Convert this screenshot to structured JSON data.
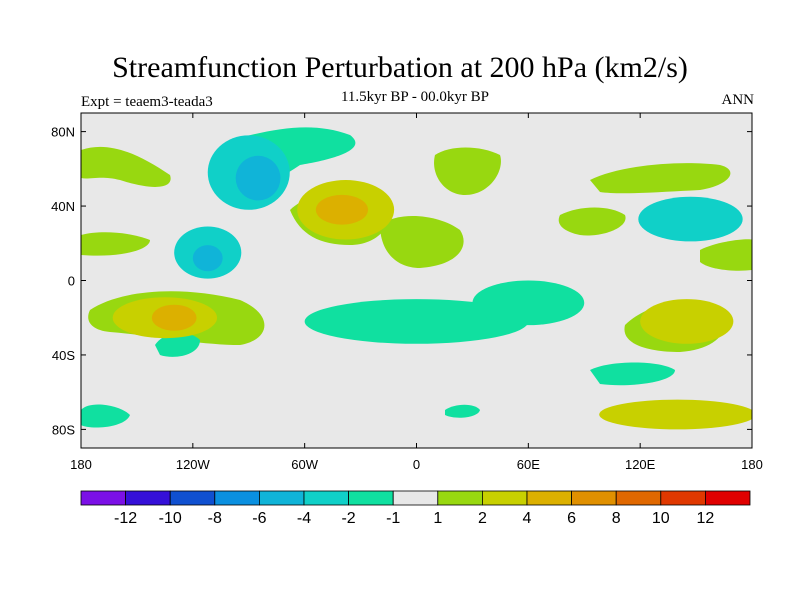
{
  "chart_data": {
    "type": "contour-map",
    "title": "Streamfunction Perturbation at 200 hPa (km2/s)",
    "subtitle": "11.5kyr BP - 00.0kyr BP",
    "left_label": "Expt = teaem3-teada3",
    "right_label": "ANN",
    "x_axis": {
      "range": [
        -180,
        180
      ],
      "ticks": [
        {
          "value": -180,
          "label": "180"
        },
        {
          "value": -120,
          "label": "120W"
        },
        {
          "value": -60,
          "label": "60W"
        },
        {
          "value": 0,
          "label": "0"
        },
        {
          "value": 60,
          "label": "60E"
        },
        {
          "value": 120,
          "label": "120E"
        },
        {
          "value": 180,
          "label": "180"
        }
      ]
    },
    "y_axis": {
      "range": [
        -90,
        90
      ],
      "ticks": [
        {
          "value": 80,
          "label": "80N"
        },
        {
          "value": 40,
          "label": "40N"
        },
        {
          "value": 0,
          "label": "0"
        },
        {
          "value": -40,
          "label": "40S"
        },
        {
          "value": -80,
          "label": "80S"
        }
      ]
    },
    "colorbar": {
      "colors": [
        "#7b10e6",
        "#3510d8",
        "#1050d0",
        "#0a90e0",
        "#10b4d8",
        "#10d0c8",
        "#10e0a0",
        "#e8e8e8",
        "#98d810",
        "#c8d000",
        "#dcb000",
        "#e09000",
        "#e06800",
        "#e03800",
        "#e00000"
      ],
      "labels": [
        "-12",
        "-10",
        "-8",
        "-6",
        "-4",
        "-2",
        "-1",
        "1",
        "2",
        "4",
        "6",
        "8",
        "10",
        "12"
      ]
    },
    "regions": [
      {
        "name": "n-america-low",
        "level": 5,
        "lon": -90,
        "lat": 58,
        "rx": 22,
        "ry": 20
      },
      {
        "name": "n-america-low-core",
        "level": 4,
        "lon": -85,
        "lat": 55,
        "rx": 12,
        "ry": 12
      },
      {
        "name": "n-atlantic-high",
        "level": 9,
        "lon": -38,
        "lat": 38,
        "rx": 26,
        "ry": 16
      },
      {
        "name": "n-atlantic-high-core",
        "level": 10,
        "lon": -40,
        "lat": 38,
        "rx": 14,
        "ry": 8
      },
      {
        "name": "mexico-low",
        "level": 5,
        "lon": -112,
        "lat": 15,
        "rx": 18,
        "ry": 14
      },
      {
        "name": "mexico-low-core",
        "level": 4,
        "lon": -112,
        "lat": 12,
        "rx": 8,
        "ry": 7
      },
      {
        "name": "s-atlantic-low",
        "level": 6,
        "lon": 0,
        "lat": -22,
        "rx": 60,
        "ry": 12
      },
      {
        "name": "indian-ocean-low",
        "level": 6,
        "lon": 60,
        "lat": -12,
        "rx": 30,
        "ry": 12
      },
      {
        "name": "s-pacific-high",
        "level": 9,
        "lon": -135,
        "lat": -20,
        "rx": 28,
        "ry": 11
      },
      {
        "name": "s-pacific-high-core",
        "level": 10,
        "lon": -130,
        "lat": -20,
        "rx": 12,
        "ry": 7
      },
      {
        "name": "w-pacific-low",
        "level": 5,
        "lon": 147,
        "lat": 33,
        "rx": 28,
        "ry": 12
      },
      {
        "name": "australia-high",
        "level": 9,
        "lon": 145,
        "lat": -22,
        "rx": 25,
        "ry": 12
      },
      {
        "name": "s-ocean-high",
        "level": 9,
        "lon": 140,
        "lat": -72,
        "rx": 42,
        "ry": 8
      }
    ]
  }
}
